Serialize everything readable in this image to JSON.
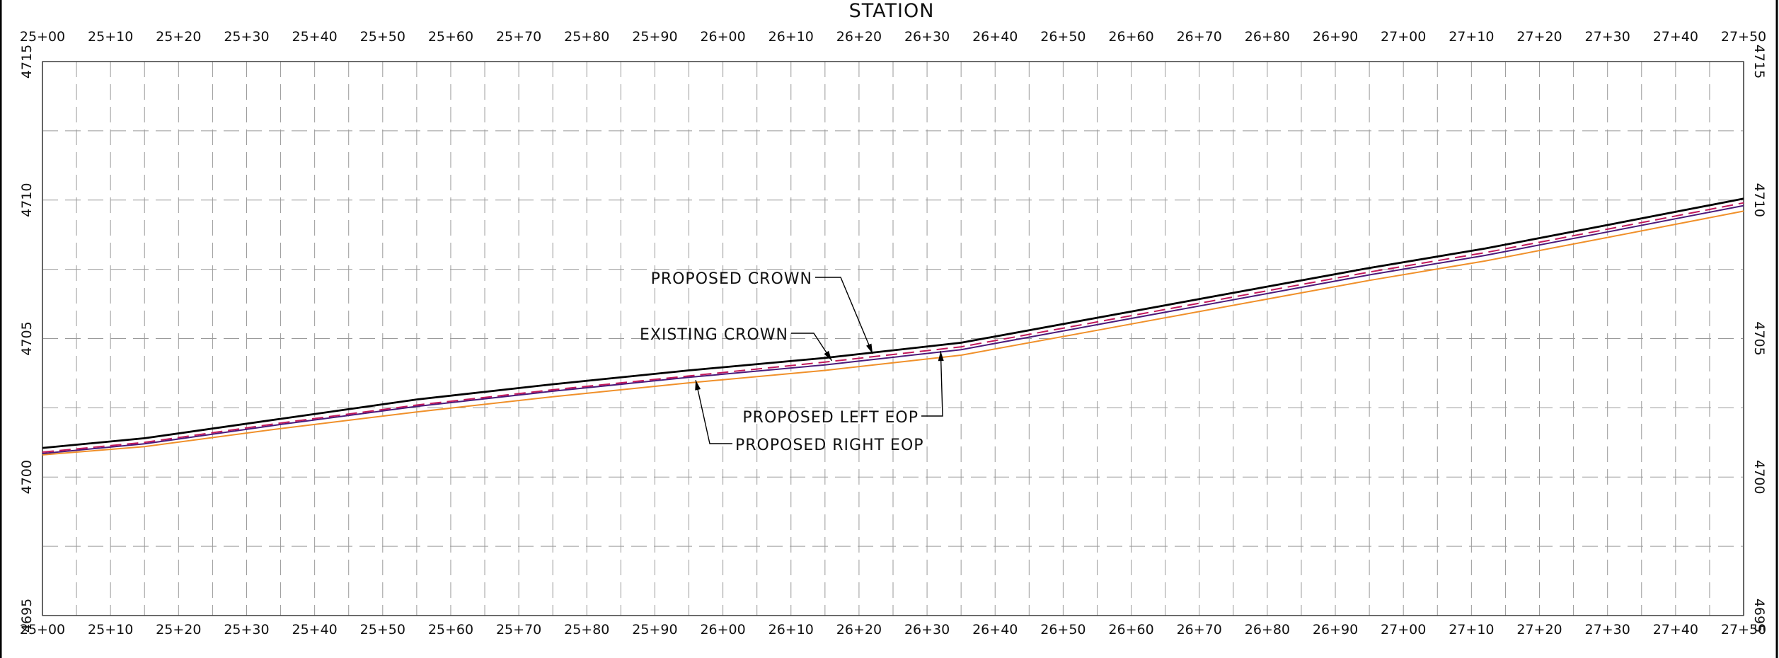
{
  "chart_data": {
    "type": "line",
    "title": "STATION",
    "xlabel": "",
    "ylabel": "",
    "x_ticks": [
      "25+00",
      "25+10",
      "25+20",
      "25+30",
      "25+40",
      "25+50",
      "25+60",
      "25+70",
      "25+80",
      "25+90",
      "26+00",
      "26+10",
      "26+20",
      "26+30",
      "26+40",
      "26+50",
      "26+60",
      "26+70",
      "26+80",
      "26+90",
      "27+00",
      "27+10",
      "27+20",
      "27+30",
      "27+40",
      "27+50"
    ],
    "y_ticks": [
      "4695",
      "4700",
      "4705",
      "4710",
      "4715"
    ],
    "xlim": [
      2500,
      2750
    ],
    "ylim": [
      4695,
      4715
    ],
    "grid": true,
    "series": [
      {
        "name": "PROPOSED CROWN",
        "color": "#000000",
        "dash": "none",
        "x": [
          2500,
          2515,
          2535,
          2555,
          2575,
          2595,
          2615,
          2635,
          2655,
          2675,
          2695,
          2712,
          2730,
          2750
        ],
        "y": [
          4701.05,
          4701.4,
          4702.1,
          4702.8,
          4703.35,
          4703.85,
          4704.3,
          4704.85,
          4705.75,
          4706.65,
          4707.55,
          4708.25,
          4709.1,
          4710.05
        ]
      },
      {
        "name": "EXISTING CROWN",
        "color": "#c2185b",
        "dash": "dashed",
        "x": [
          2500,
          2515,
          2535,
          2555,
          2575,
          2595,
          2615,
          2635,
          2655,
          2675,
          2695,
          2712,
          2730,
          2750
        ],
        "y": [
          4700.9,
          4701.25,
          4701.95,
          4702.6,
          4703.15,
          4703.65,
          4704.15,
          4704.7,
          4705.6,
          4706.5,
          4707.4,
          4708.1,
          4708.95,
          4709.9
        ]
      },
      {
        "name": "PROPOSED LEFT EOP",
        "color": "#4b1a7a",
        "dash": "none",
        "x": [
          2500,
          2515,
          2535,
          2555,
          2575,
          2595,
          2615,
          2635,
          2655,
          2675,
          2695,
          2712,
          2730,
          2750
        ],
        "y": [
          4700.85,
          4701.2,
          4701.9,
          4702.55,
          4703.1,
          4703.6,
          4704.05,
          4704.6,
          4705.5,
          4706.4,
          4707.3,
          4708.0,
          4708.85,
          4709.8
        ]
      },
      {
        "name": "PROPOSED RIGHT EOP",
        "color": "#f0902a",
        "dash": "none",
        "x": [
          2500,
          2515,
          2535,
          2555,
          2575,
          2595,
          2615,
          2635,
          2655,
          2675,
          2695,
          2712,
          2730,
          2750
        ],
        "y": [
          4700.8,
          4701.1,
          4701.75,
          4702.35,
          4702.9,
          4703.4,
          4703.85,
          4704.4,
          4705.3,
          4706.2,
          4707.1,
          4707.8,
          4708.65,
          4709.6
        ]
      }
    ],
    "annotations": [
      {
        "text": "PROPOSED CROWN",
        "target_x": 2622,
        "target_y": 4704.45
      },
      {
        "text": "EXISTING CROWN",
        "target_x": 2616,
        "target_y": 4704.2
      },
      {
        "text": "PROPOSED LEFT EOP",
        "target_x": 2632,
        "target_y": 4704.55
      },
      {
        "text": "PROPOSED RIGHT EOP",
        "target_x": 2596,
        "target_y": 4703.5
      }
    ]
  }
}
